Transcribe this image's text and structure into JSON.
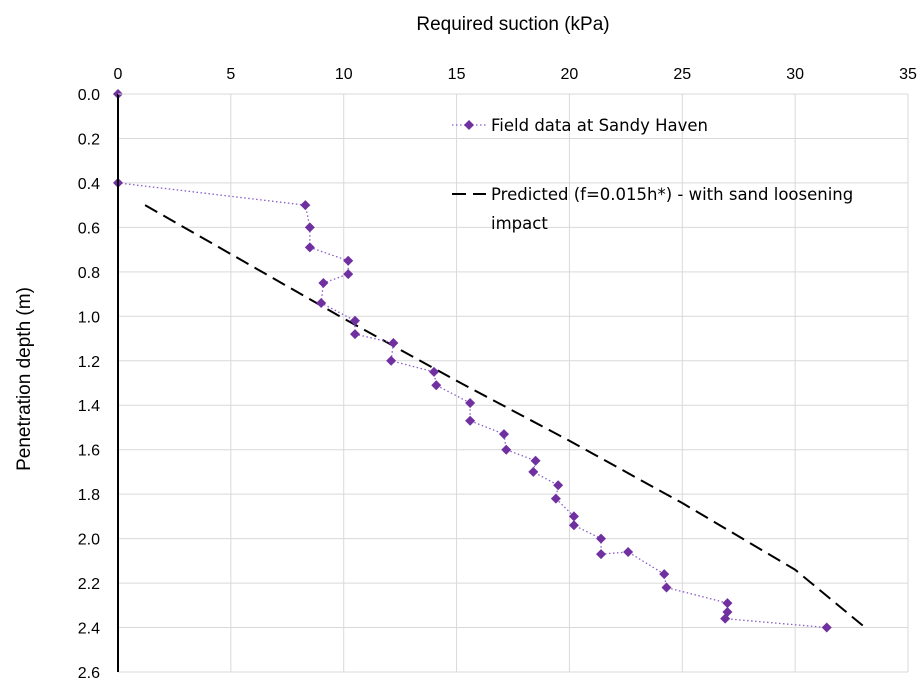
{
  "chart_data": {
    "type": "scatter",
    "xlabel": "Required suction (kPa)",
    "ylabel": "Penetration depth (m)",
    "x_axis_position": "top",
    "y_axis_inverted": true,
    "xlim": [
      0,
      35
    ],
    "ylim": [
      0,
      2.6
    ],
    "xticks": [
      "0",
      "5",
      "10",
      "15",
      "20",
      "25",
      "30",
      "35"
    ],
    "yticks": [
      "0.0",
      "0.2",
      "0.4",
      "0.6",
      "0.8",
      "1.0",
      "1.2",
      "1.4",
      "1.6",
      "1.8",
      "2.0",
      "2.2",
      "2.4",
      "2.6"
    ],
    "grid": true,
    "legend_placement": "top-right",
    "series": [
      {
        "name": "Field data at Sandy Haven",
        "style": "dotted line with diamond markers",
        "color": "#7030A0",
        "points": [
          [
            0,
            0.0
          ],
          [
            0,
            0.4
          ],
          [
            8.3,
            0.5
          ],
          [
            8.5,
            0.6
          ],
          [
            8.5,
            0.69
          ],
          [
            10.2,
            0.75
          ],
          [
            10.2,
            0.81
          ],
          [
            9.1,
            0.85
          ],
          [
            9.0,
            0.94
          ],
          [
            10.5,
            1.02
          ],
          [
            10.5,
            1.08
          ],
          [
            12.2,
            1.12
          ],
          [
            12.1,
            1.2
          ],
          [
            14.0,
            1.25
          ],
          [
            14.1,
            1.31
          ],
          [
            15.6,
            1.39
          ],
          [
            15.6,
            1.47
          ],
          [
            17.1,
            1.53
          ],
          [
            17.2,
            1.6
          ],
          [
            18.5,
            1.65
          ],
          [
            18.4,
            1.7
          ],
          [
            19.5,
            1.76
          ],
          [
            19.4,
            1.82
          ],
          [
            20.2,
            1.9
          ],
          [
            20.2,
            1.94
          ],
          [
            21.4,
            2.0
          ],
          [
            21.4,
            2.07
          ],
          [
            22.6,
            2.06
          ],
          [
            24.2,
            2.16
          ],
          [
            24.3,
            2.22
          ],
          [
            27.0,
            2.29
          ],
          [
            27.0,
            2.33
          ],
          [
            26.9,
            2.36
          ],
          [
            31.4,
            2.4
          ]
        ]
      },
      {
        "name": "Predicted (f=0.015h*) - with sand loosening impact",
        "legend_lines": [
          "Predicted (f=0.015h*) - with sand loosening",
          "impact"
        ],
        "style": "dashed line",
        "color": "#000000",
        "points": [
          [
            1.2,
            0.5
          ],
          [
            5.0,
            0.72
          ],
          [
            10.0,
            1.01
          ],
          [
            15.0,
            1.29
          ],
          [
            20.0,
            1.56
          ],
          [
            25.0,
            1.84
          ],
          [
            30.0,
            2.14
          ],
          [
            33.1,
            2.4
          ]
        ]
      }
    ]
  }
}
